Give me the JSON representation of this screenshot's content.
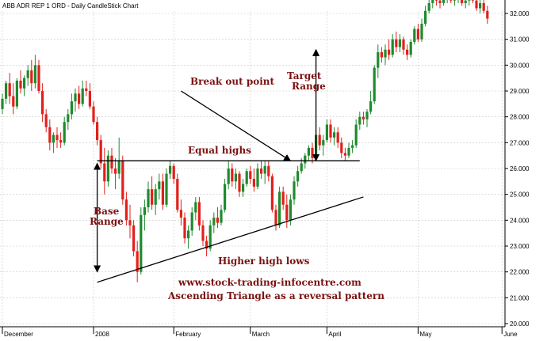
{
  "chart_data": {
    "type": "candlestick",
    "title": "ABB ADR REP 1 ORD - Daily CandleStick Chart",
    "ylim": [
      20.0,
      32.0
    ],
    "y_ticks": [
      20.0,
      21.0,
      22.0,
      23.0,
      24.0,
      25.0,
      26.0,
      27.0,
      28.0,
      29.0,
      30.0,
      31.0,
      32.0
    ],
    "y_tick_labels": [
      "20.000",
      "21.000",
      "22.000",
      "23.000",
      "24.000",
      "25.000",
      "26.000",
      "27.000",
      "28.000",
      "29.000",
      "30.000",
      "31.000",
      "32.000"
    ],
    "x_month_labels": [
      {
        "label": "December",
        "index": 0
      },
      {
        "label": "2008",
        "index": 25
      },
      {
        "label": "February",
        "index": 47
      },
      {
        "label": "March",
        "index": 68
      },
      {
        "label": "April",
        "index": 89
      },
      {
        "label": "May",
        "index": 114
      },
      {
        "label": "June",
        "index": 137
      }
    ],
    "colors": {
      "up": "#1f8a2e",
      "down": "#e1201c",
      "line": "#000000",
      "annotation": "#8a1010",
      "grid": "#c8c8c8"
    },
    "candles": [
      {
        "o": 28.3,
        "h": 28.9,
        "l": 28.1,
        "c": 28.7
      },
      {
        "o": 28.7,
        "h": 29.4,
        "l": 28.5,
        "c": 29.3
      },
      {
        "o": 29.3,
        "h": 29.7,
        "l": 28.5,
        "c": 28.8
      },
      {
        "o": 28.8,
        "h": 29.3,
        "l": 28.1,
        "c": 28.4
      },
      {
        "o": 28.4,
        "h": 29.5,
        "l": 28.3,
        "c": 29.4
      },
      {
        "o": 29.4,
        "h": 29.8,
        "l": 28.9,
        "c": 29.1
      },
      {
        "o": 29.1,
        "h": 29.6,
        "l": 28.8,
        "c": 29.5
      },
      {
        "o": 29.5,
        "h": 30.0,
        "l": 29.2,
        "c": 29.8
      },
      {
        "o": 29.8,
        "h": 30.2,
        "l": 29.0,
        "c": 29.3
      },
      {
        "o": 29.3,
        "h": 30.4,
        "l": 29.1,
        "c": 30.0
      },
      {
        "o": 30.0,
        "h": 30.2,
        "l": 28.9,
        "c": 29.0
      },
      {
        "o": 29.0,
        "h": 29.3,
        "l": 27.8,
        "c": 28.1
      },
      {
        "o": 28.1,
        "h": 28.3,
        "l": 27.4,
        "c": 27.6
      },
      {
        "o": 27.6,
        "h": 27.9,
        "l": 26.7,
        "c": 27.0
      },
      {
        "o": 27.0,
        "h": 27.4,
        "l": 26.6,
        "c": 27.3
      },
      {
        "o": 27.3,
        "h": 27.6,
        "l": 26.8,
        "c": 27.1
      },
      {
        "o": 27.1,
        "h": 27.4,
        "l": 26.8,
        "c": 27.0
      },
      {
        "o": 27.0,
        "h": 28.0,
        "l": 26.9,
        "c": 27.8
      },
      {
        "o": 27.8,
        "h": 28.3,
        "l": 27.5,
        "c": 28.1
      },
      {
        "o": 28.1,
        "h": 28.9,
        "l": 27.9,
        "c": 28.6
      },
      {
        "o": 28.6,
        "h": 29.1,
        "l": 28.2,
        "c": 28.9
      },
      {
        "o": 28.9,
        "h": 29.2,
        "l": 28.3,
        "c": 28.5
      },
      {
        "o": 28.5,
        "h": 29.4,
        "l": 28.4,
        "c": 29.1
      },
      {
        "o": 29.1,
        "h": 29.4,
        "l": 28.8,
        "c": 29.0
      },
      {
        "o": 29.0,
        "h": 29.3,
        "l": 28.3,
        "c": 28.4
      },
      {
        "o": 28.4,
        "h": 28.6,
        "l": 27.7,
        "c": 27.8
      },
      {
        "o": 27.8,
        "h": 28.0,
        "l": 26.9,
        "c": 27.1
      },
      {
        "o": 27.1,
        "h": 27.3,
        "l": 26.0,
        "c": 26.2
      },
      {
        "o": 26.2,
        "h": 26.8,
        "l": 25.0,
        "c": 25.5
      },
      {
        "o": 25.5,
        "h": 26.7,
        "l": 25.3,
        "c": 26.5
      },
      {
        "o": 26.5,
        "h": 26.8,
        "l": 25.8,
        "c": 26.0
      },
      {
        "o": 26.0,
        "h": 26.4,
        "l": 25.2,
        "c": 25.8
      },
      {
        "o": 25.8,
        "h": 27.2,
        "l": 25.6,
        "c": 26.3
      },
      {
        "o": 26.3,
        "h": 26.5,
        "l": 24.6,
        "c": 24.8
      },
      {
        "o": 24.8,
        "h": 25.1,
        "l": 23.8,
        "c": 24.0
      },
      {
        "o": 24.0,
        "h": 24.6,
        "l": 23.3,
        "c": 23.8
      },
      {
        "o": 23.8,
        "h": 24.0,
        "l": 22.6,
        "c": 22.8
      },
      {
        "o": 22.8,
        "h": 23.2,
        "l": 21.6,
        "c": 22.0
      },
      {
        "o": 22.0,
        "h": 24.5,
        "l": 21.9,
        "c": 24.2
      },
      {
        "o": 24.2,
        "h": 24.8,
        "l": 23.6,
        "c": 24.5
      },
      {
        "o": 24.5,
        "h": 25.5,
        "l": 24.3,
        "c": 25.2
      },
      {
        "o": 25.2,
        "h": 25.7,
        "l": 24.4,
        "c": 24.6
      },
      {
        "o": 24.6,
        "h": 25.4,
        "l": 24.2,
        "c": 25.2
      },
      {
        "o": 25.2,
        "h": 25.8,
        "l": 24.8,
        "c": 25.5
      },
      {
        "o": 25.5,
        "h": 25.8,
        "l": 24.4,
        "c": 24.6
      },
      {
        "o": 24.6,
        "h": 26.0,
        "l": 24.5,
        "c": 25.8
      },
      {
        "o": 25.8,
        "h": 26.3,
        "l": 25.6,
        "c": 26.1
      },
      {
        "o": 26.1,
        "h": 26.2,
        "l": 25.4,
        "c": 25.6
      },
      {
        "o": 25.6,
        "h": 25.8,
        "l": 24.3,
        "c": 24.4
      },
      {
        "o": 24.4,
        "h": 24.8,
        "l": 23.8,
        "c": 24.1
      },
      {
        "o": 24.1,
        "h": 24.3,
        "l": 23.1,
        "c": 23.3
      },
      {
        "o": 23.3,
        "h": 23.8,
        "l": 22.9,
        "c": 23.6
      },
      {
        "o": 23.6,
        "h": 24.5,
        "l": 23.4,
        "c": 24.3
      },
      {
        "o": 24.3,
        "h": 24.9,
        "l": 24.0,
        "c": 24.7
      },
      {
        "o": 24.7,
        "h": 24.9,
        "l": 23.6,
        "c": 23.8
      },
      {
        "o": 23.8,
        "h": 24.0,
        "l": 23.0,
        "c": 23.2
      },
      {
        "o": 23.2,
        "h": 23.4,
        "l": 22.6,
        "c": 22.9
      },
      {
        "o": 22.9,
        "h": 24.0,
        "l": 22.8,
        "c": 23.8
      },
      {
        "o": 23.8,
        "h": 24.3,
        "l": 23.5,
        "c": 24.1
      },
      {
        "o": 24.1,
        "h": 24.5,
        "l": 23.7,
        "c": 23.9
      },
      {
        "o": 23.9,
        "h": 24.6,
        "l": 23.8,
        "c": 24.4
      },
      {
        "o": 24.4,
        "h": 25.6,
        "l": 24.3,
        "c": 25.4
      },
      {
        "o": 25.4,
        "h": 26.3,
        "l": 25.2,
        "c": 26.0
      },
      {
        "o": 26.0,
        "h": 26.2,
        "l": 25.3,
        "c": 25.5
      },
      {
        "o": 25.5,
        "h": 26.0,
        "l": 25.2,
        "c": 25.8
      },
      {
        "o": 25.8,
        "h": 25.9,
        "l": 24.9,
        "c": 25.1
      },
      {
        "o": 25.1,
        "h": 25.6,
        "l": 24.9,
        "c": 25.4
      },
      {
        "o": 25.4,
        "h": 26.0,
        "l": 25.3,
        "c": 25.9
      },
      {
        "o": 25.9,
        "h": 26.1,
        "l": 25.4,
        "c": 25.6
      },
      {
        "o": 25.6,
        "h": 26.0,
        "l": 25.1,
        "c": 25.3
      },
      {
        "o": 25.3,
        "h": 26.2,
        "l": 25.2,
        "c": 26.0
      },
      {
        "o": 26.0,
        "h": 26.3,
        "l": 25.6,
        "c": 25.8
      },
      {
        "o": 25.8,
        "h": 26.3,
        "l": 25.4,
        "c": 26.1
      },
      {
        "o": 26.1,
        "h": 26.3,
        "l": 25.5,
        "c": 25.7
      },
      {
        "o": 25.7,
        "h": 25.8,
        "l": 24.3,
        "c": 24.4
      },
      {
        "o": 24.4,
        "h": 24.6,
        "l": 23.6,
        "c": 23.8
      },
      {
        "o": 23.8,
        "h": 25.3,
        "l": 23.7,
        "c": 25.1
      },
      {
        "o": 25.1,
        "h": 25.3,
        "l": 24.4,
        "c": 24.6
      },
      {
        "o": 24.6,
        "h": 25.0,
        "l": 23.7,
        "c": 24.0
      },
      {
        "o": 24.0,
        "h": 25.0,
        "l": 23.8,
        "c": 24.8
      },
      {
        "o": 24.8,
        "h": 25.7,
        "l": 24.6,
        "c": 25.5
      },
      {
        "o": 25.5,
        "h": 26.1,
        "l": 25.3,
        "c": 25.9
      },
      {
        "o": 25.9,
        "h": 26.4,
        "l": 25.8,
        "c": 26.2
      },
      {
        "o": 26.2,
        "h": 26.6,
        "l": 26.0,
        "c": 26.5
      },
      {
        "o": 26.5,
        "h": 26.9,
        "l": 26.3,
        "c": 26.8
      },
      {
        "o": 26.8,
        "h": 27.0,
        "l": 26.2,
        "c": 26.4
      },
      {
        "o": 26.4,
        "h": 27.5,
        "l": 26.3,
        "c": 27.3
      },
      {
        "o": 27.3,
        "h": 27.6,
        "l": 26.7,
        "c": 26.9
      },
      {
        "o": 26.9,
        "h": 27.3,
        "l": 26.5,
        "c": 27.1
      },
      {
        "o": 27.1,
        "h": 27.9,
        "l": 27.0,
        "c": 27.7
      },
      {
        "o": 27.7,
        "h": 27.9,
        "l": 27.0,
        "c": 27.2
      },
      {
        "o": 27.2,
        "h": 27.6,
        "l": 26.9,
        "c": 27.4
      },
      {
        "o": 27.4,
        "h": 27.6,
        "l": 26.8,
        "c": 27.0
      },
      {
        "o": 27.0,
        "h": 27.2,
        "l": 26.4,
        "c": 26.6
      },
      {
        "o": 26.6,
        "h": 26.8,
        "l": 26.3,
        "c": 26.5
      },
      {
        "o": 26.5,
        "h": 27.0,
        "l": 26.4,
        "c": 26.8
      },
      {
        "o": 26.8,
        "h": 27.1,
        "l": 26.6,
        "c": 26.9
      },
      {
        "o": 26.9,
        "h": 27.9,
        "l": 26.8,
        "c": 27.7
      },
      {
        "o": 27.7,
        "h": 28.2,
        "l": 27.5,
        "c": 28.0
      },
      {
        "o": 28.0,
        "h": 28.2,
        "l": 27.7,
        "c": 27.9
      },
      {
        "o": 27.9,
        "h": 28.3,
        "l": 27.6,
        "c": 28.2
      },
      {
        "o": 28.2,
        "h": 29.0,
        "l": 28.1,
        "c": 28.6
      },
      {
        "o": 28.6,
        "h": 30.0,
        "l": 28.5,
        "c": 29.9
      },
      {
        "o": 29.9,
        "h": 30.8,
        "l": 29.5,
        "c": 30.5
      },
      {
        "o": 30.5,
        "h": 30.7,
        "l": 30.1,
        "c": 30.3
      },
      {
        "o": 30.3,
        "h": 30.8,
        "l": 30.0,
        "c": 30.6
      },
      {
        "o": 30.6,
        "h": 31.0,
        "l": 30.2,
        "c": 30.4
      },
      {
        "o": 30.4,
        "h": 31.2,
        "l": 30.3,
        "c": 31.0
      },
      {
        "o": 31.0,
        "h": 31.3,
        "l": 30.5,
        "c": 30.7
      },
      {
        "o": 30.7,
        "h": 31.2,
        "l": 30.5,
        "c": 31.0
      },
      {
        "o": 31.0,
        "h": 31.1,
        "l": 30.4,
        "c": 30.6
      },
      {
        "o": 30.6,
        "h": 30.8,
        "l": 30.2,
        "c": 30.4
      },
      {
        "o": 30.4,
        "h": 31.0,
        "l": 30.3,
        "c": 30.9
      },
      {
        "o": 30.9,
        "h": 31.5,
        "l": 30.8,
        "c": 31.4
      },
      {
        "o": 31.4,
        "h": 31.6,
        "l": 30.9,
        "c": 31.0
      },
      {
        "o": 31.0,
        "h": 31.8,
        "l": 30.9,
        "c": 31.6
      },
      {
        "o": 31.6,
        "h": 32.3,
        "l": 31.5,
        "c": 32.1
      },
      {
        "o": 32.1,
        "h": 32.6,
        "l": 32.0,
        "c": 32.4
      },
      {
        "o": 32.4,
        "h": 32.7,
        "l": 32.2,
        "c": 32.6
      },
      {
        "o": 32.6,
        "h": 32.8,
        "l": 32.3,
        "c": 32.5
      },
      {
        "o": 32.5,
        "h": 32.7,
        "l": 32.2,
        "c": 32.4
      },
      {
        "o": 32.4,
        "h": 32.7,
        "l": 32.3,
        "c": 32.6
      },
      {
        "o": 32.6,
        "h": 32.8,
        "l": 32.4,
        "c": 32.7
      },
      {
        "o": 32.7,
        "h": 32.8,
        "l": 32.4,
        "c": 32.5
      },
      {
        "o": 32.5,
        "h": 32.7,
        "l": 32.3,
        "c": 32.6
      },
      {
        "o": 32.6,
        "h": 32.8,
        "l": 32.4,
        "c": 32.6
      },
      {
        "o": 32.6,
        "h": 32.8,
        "l": 32.3,
        "c": 32.4
      },
      {
        "o": 32.4,
        "h": 32.7,
        "l": 32.2,
        "c": 32.5
      },
      {
        "o": 32.5,
        "h": 32.8,
        "l": 32.3,
        "c": 32.7
      },
      {
        "o": 32.7,
        "h": 32.8,
        "l": 32.4,
        "c": 32.5
      },
      {
        "o": 32.5,
        "h": 32.7,
        "l": 32.1,
        "c": 32.2
      },
      {
        "o": 32.2,
        "h": 32.6,
        "l": 32.0,
        "c": 32.4
      },
      {
        "o": 32.4,
        "h": 32.6,
        "l": 32.0,
        "c": 32.1
      },
      {
        "o": 32.1,
        "h": 32.3,
        "l": 31.6,
        "c": 31.8
      }
    ],
    "annotation_lines": [
      {
        "name": "equal-highs-line",
        "x1": 26,
        "y1": 26.3,
        "x2": 98,
        "y2": 26.3
      },
      {
        "name": "higher-lows-trendline",
        "x1": 26,
        "y1": 21.6,
        "x2": 99,
        "y2": 24.9
      },
      {
        "name": "base-range-arrow",
        "x1": 26,
        "y1": 22.0,
        "x2": 26,
        "y2": 26.2,
        "double_arrow": true
      },
      {
        "name": "target-range-arrow",
        "x1": 86,
        "y1": 26.3,
        "x2": 86,
        "y2": 30.6,
        "double_arrow": true
      },
      {
        "name": "breakout-arrow",
        "x1": 49,
        "y1": 29.0,
        "x2": 79,
        "y2": 26.3,
        "arrow_end": true
      }
    ]
  },
  "annotations": {
    "break_out": "Break out point",
    "target_line1": "Target",
    "target_line2": "Range",
    "equal_highs": "Equal highs",
    "base_line1": "Base",
    "base_line2": "Range",
    "higher_lows": "Higher high lows",
    "website": "www.stock-trading-infocentre.com",
    "subtitle": "Ascending Triangle as a reversal pattern"
  }
}
